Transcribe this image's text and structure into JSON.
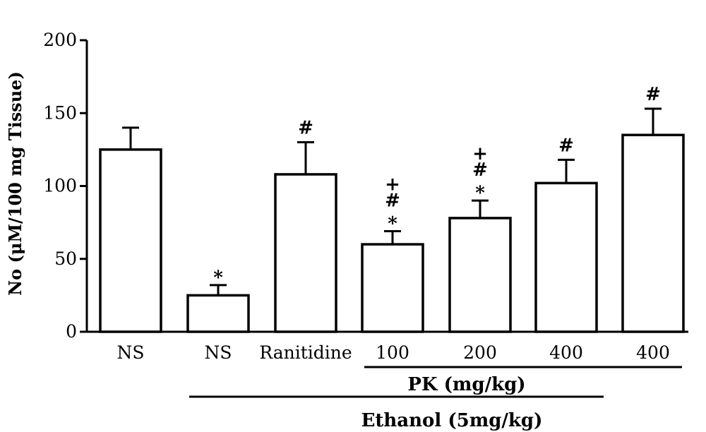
{
  "chart_data": {
    "type": "bar",
    "ylabel": "No (μM/100 mg Tissue)",
    "ylim": [
      0,
      200
    ],
    "yticks": [
      0,
      50,
      100,
      150,
      200
    ],
    "categories": [
      "NS",
      "NS",
      "Ranitidine",
      "100",
      "200",
      "400",
      "400"
    ],
    "values": [
      125,
      25,
      108,
      60,
      78,
      102,
      135
    ],
    "errors": [
      15,
      7,
      22,
      9,
      12,
      16,
      18
    ],
    "markers": [
      [],
      [
        "*"
      ],
      [
        "#"
      ],
      [
        "*",
        "#",
        "+"
      ],
      [
        "*",
        "#",
        "+"
      ],
      [
        "#"
      ],
      [
        "#"
      ]
    ],
    "groups": [
      {
        "label": "PK (mg/kg)",
        "start": 3,
        "end": 6
      },
      {
        "label": "Ethanol (5mg/kg)",
        "start": 1,
        "end": 5
      }
    ]
  }
}
